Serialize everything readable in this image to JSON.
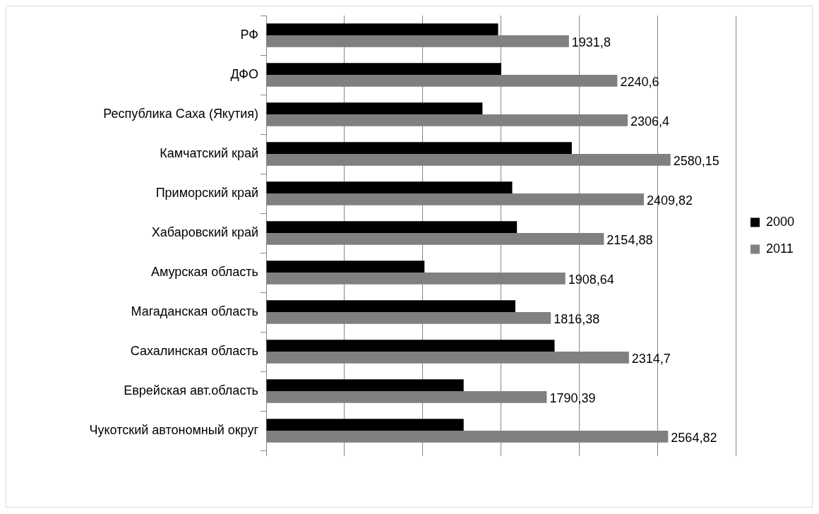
{
  "chart_data": {
    "type": "bar",
    "orientation": "horizontal",
    "categories": [
      "РФ",
      "ДФО",
      "Республика Саха (Якутия)",
      "Камчатский край",
      "Приморский край",
      "Хабаровский край",
      "Амурская область",
      "Магаданская область",
      "Сахалинская область",
      "Еврейская авт.область",
      "Чукотский автономный округ"
    ],
    "series": [
      {
        "name": "2000",
        "color": "#000000",
        "values": [
          1480,
          1500,
          1380,
          1950,
          1570,
          1600,
          1010,
          1590,
          1840,
          1260,
          1260
        ]
      },
      {
        "name": "2011",
        "color": "#808080",
        "values": [
          1931.8,
          2240.6,
          2306.4,
          2580.15,
          2409.82,
          2154.88,
          1908.64,
          1816.38,
          2314.7,
          1790.39,
          2564.82
        ],
        "value_labels": [
          "1931,8",
          "2240,6",
          "2306,4",
          "2580,15",
          "2409,82",
          "2154,88",
          "1908,64",
          "1816,38",
          "2314,7",
          "1790,39",
          "2564,82"
        ]
      }
    ],
    "xlim": [
      0,
      3000
    ],
    "xticks": [
      {
        "value": 0,
        "label": null
      },
      {
        "value": 500,
        "label": null
      },
      {
        "value": 1000,
        "label": null
      },
      {
        "value": 1500,
        "label": null
      },
      {
        "value": 2000,
        "label": null
      },
      {
        "value": 2500,
        "label": null
      },
      {
        "value": 3000,
        "label": null
      }
    ],
    "tick_labels": "y",
    "grid": "x",
    "legend": "right"
  }
}
